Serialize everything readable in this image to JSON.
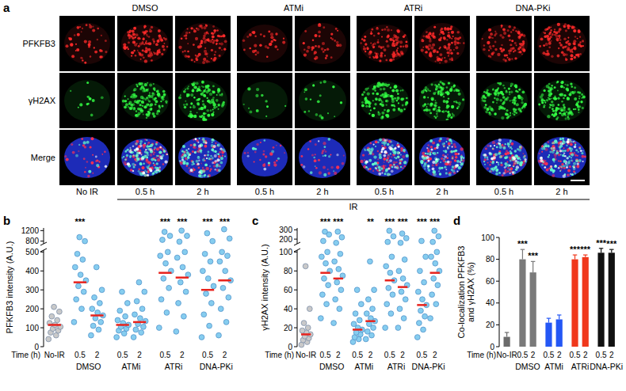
{
  "image_panel": {
    "label": "a",
    "treatments": [
      "DMSO",
      "DMSO",
      "DMSO",
      "ATMi",
      "ATMi",
      "ATRi",
      "ATRi",
      "DNA-PKi",
      "DNA-PKi"
    ],
    "times": [
      "No IR",
      "0.5 h",
      "2 h",
      "0.5 h",
      "2 h",
      "0.5 h",
      "2 h",
      "0.5 h",
      "2 h"
    ],
    "rows": [
      "PFKFB3",
      "γH2AX",
      "Merge"
    ],
    "ir_label": "IR"
  },
  "chart_data": [
    {
      "panel": "b",
      "type": "strip",
      "ylabel": "PFKFB3 intensity (A.U.)",
      "xlabel": "Time (h)",
      "categories": [
        "No-IR",
        "0.5",
        "2",
        "0.5",
        "2",
        "0.5",
        "2",
        "0.5",
        "2"
      ],
      "groups": [
        null,
        "DMSO",
        "DMSO",
        "ATMi",
        "ATMi",
        "ATRi",
        "ATRi",
        "DNA-PKi",
        "DNA-PKi"
      ],
      "ylim": [
        0,
        510
      ],
      "yticks": [
        0,
        100,
        200,
        300,
        400,
        500
      ],
      "upper_ylim": [
        700,
        1300
      ],
      "upper_yticks": [
        800,
        1200
      ],
      "colors": [
        "#c9c9c9",
        "#86cdef",
        "#86cdef",
        "#86cdef",
        "#86cdef",
        "#86cdef",
        "#86cdef",
        "#86cdef",
        "#86cdef"
      ],
      "points": [
        [
          40,
          60,
          75,
          85,
          95,
          105,
          115,
          125,
          140,
          160,
          185,
          210
        ],
        [
          130,
          200,
          250,
          290,
          320,
          350,
          380,
          420,
          460,
          490,
          800,
          950
        ],
        [
          60,
          90,
          110,
          130,
          150,
          165,
          180,
          200,
          230,
          260,
          300,
          420
        ],
        [
          50,
          70,
          85,
          95,
          105,
          115,
          125,
          140,
          160,
          190,
          230,
          290
        ],
        [
          50,
          75,
          90,
          105,
          120,
          135,
          150,
          170,
          200,
          240,
          290,
          340
        ],
        [
          100,
          180,
          250,
          310,
          360,
          400,
          440,
          480,
          500,
          850,
          1000,
          1150
        ],
        [
          80,
          160,
          230,
          290,
          340,
          380,
          420,
          470,
          500,
          780,
          1000,
          1200
        ],
        [
          50,
          110,
          170,
          230,
          280,
          320,
          360,
          400,
          450,
          490,
          800,
          1100
        ],
        [
          60,
          130,
          200,
          260,
          310,
          350,
          400,
          450,
          480,
          500,
          900,
          1250
        ]
      ],
      "means": [
        115,
        340,
        165,
        115,
        130,
        390,
        365,
        300,
        350
      ],
      "significance": [
        null,
        "***",
        null,
        null,
        null,
        "***",
        "***",
        "***",
        "***"
      ]
    },
    {
      "panel": "c",
      "type": "strip",
      "ylabel": "γH2AX intensity (A.U.)",
      "xlabel": "Time (h)",
      "categories": [
        "No-IR",
        "0.5",
        "2",
        "0.5",
        "2",
        "0.5",
        "2",
        "0.5",
        "2"
      ],
      "groups": [
        null,
        "DMSO",
        "DMSO",
        "ATMi",
        "ATMi",
        "ATRi",
        "ATRi",
        "DNA-PKi",
        "DNA-PKi"
      ],
      "ylim": [
        0,
        102
      ],
      "yticks": [
        0,
        20,
        40,
        60,
        80,
        100
      ],
      "upper_ylim": [
        150,
        320
      ],
      "upper_yticks": [
        200,
        300
      ],
      "colors": [
        "#c9c9c9",
        "#86cdef",
        "#86cdef",
        "#86cdef",
        "#86cdef",
        "#86cdef",
        "#86cdef",
        "#86cdef",
        "#86cdef"
      ],
      "points": [
        [
          2,
          5,
          7,
          9,
          11,
          13,
          15,
          17,
          20,
          25,
          40,
          85
        ],
        [
          30,
          45,
          55,
          65,
          72,
          80,
          88,
          95,
          100,
          180,
          250,
          280
        ],
        [
          25,
          40,
          50,
          60,
          68,
          75,
          82,
          90,
          98,
          160,
          220,
          280
        ],
        [
          5,
          8,
          10,
          13,
          15,
          18,
          20,
          24,
          28,
          35,
          45,
          60
        ],
        [
          8,
          12,
          16,
          20,
          24,
          27,
          30,
          35,
          40,
          50,
          60,
          90
        ],
        [
          20,
          35,
          45,
          55,
          62,
          70,
          78,
          85,
          95,
          170,
          230,
          290
        ],
        [
          20,
          30,
          40,
          50,
          58,
          65,
          72,
          80,
          92,
          160,
          210,
          260
        ],
        [
          10,
          18,
          25,
          32,
          38,
          44,
          50,
          58,
          68,
          80,
          95,
          180
        ],
        [
          30,
          45,
          55,
          65,
          72,
          80,
          88,
          95,
          100,
          170,
          230,
          290
        ]
      ],
      "means": [
        13,
        78,
        72,
        18,
        27,
        70,
        63,
        44,
        78
      ],
      "significance": [
        null,
        "***",
        "***",
        null,
        "**",
        "***",
        "***",
        "***",
        "***"
      ]
    },
    {
      "panel": "d",
      "type": "bar",
      "ylabel": "Co-localization PFKFB3\nand γH2AX (%)",
      "xlabel": "Time (h)",
      "categories": [
        "No-IR",
        "0.5",
        "2",
        "0.5",
        "2",
        "0.5",
        "2",
        "0.5",
        "2"
      ],
      "groups": [
        null,
        "DMSO",
        "DMSO",
        "ATMi",
        "ATMi",
        "ATRi",
        "ATRi",
        "DNA-PKi",
        "DNA-PKi"
      ],
      "values": [
        9,
        80,
        68,
        22,
        25,
        80,
        82,
        86,
        86
      ],
      "errors": [
        4,
        9,
        10,
        4,
        4,
        4,
        2,
        4,
        3
      ],
      "colors": [
        "#6b6b6b",
        "#7a7a7a",
        "#7a7a7a",
        "#2457f5",
        "#2457f5",
        "#f0381c",
        "#f0381c",
        "#111111",
        "#111111"
      ],
      "ylim": [
        0,
        100
      ],
      "yticks": [
        0,
        20,
        40,
        60,
        80,
        100
      ],
      "significance": [
        null,
        "***",
        "***",
        null,
        null,
        "***",
        "***",
        "***",
        "***"
      ]
    }
  ]
}
